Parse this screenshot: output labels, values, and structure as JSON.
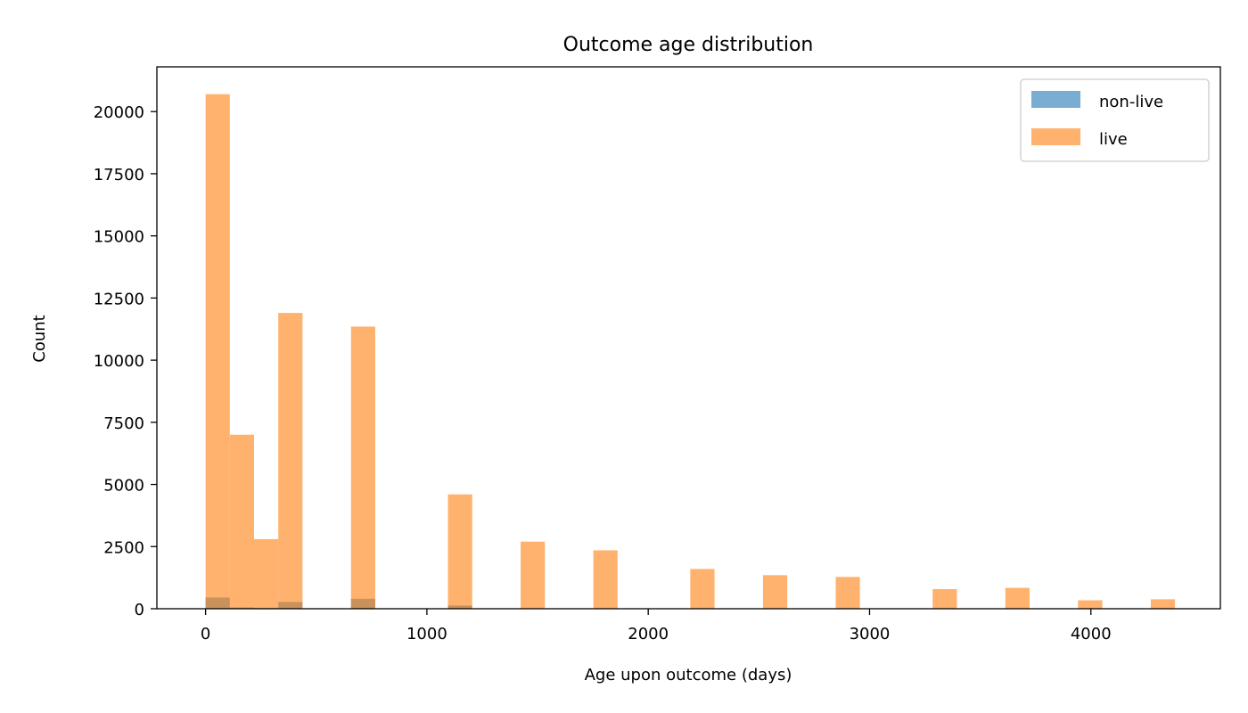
{
  "chart_data": {
    "type": "bar",
    "title": "Outcome age distribution",
    "xlabel": "Age upon outcome (days)",
    "ylabel": "Count",
    "xlim": [
      -220,
      4585
    ],
    "ylim": [
      0,
      21800
    ],
    "xticks": [
      0,
      1000,
      2000,
      3000,
      4000
    ],
    "yticks": [
      0,
      2500,
      5000,
      7500,
      10000,
      12500,
      15000,
      17500,
      20000
    ],
    "bin_width": 109.5,
    "bin_starts": [
      0,
      109.5,
      219,
      328.5,
      657,
      1095,
      1423.5,
      1752,
      2190,
      2518.5,
      2847,
      3285,
      3613.5,
      3942,
      4270.5
    ],
    "grid": false,
    "legend_position": "upper right",
    "series": [
      {
        "name": "non-live",
        "color": "#1f77b4",
        "alpha": 0.6,
        "values": [
          450,
          50,
          30,
          270,
          400,
          130,
          10,
          10,
          10,
          10,
          10,
          5,
          5,
          5,
          5
        ]
      },
      {
        "name": "live",
        "color": "#ff7f0e",
        "alpha": 0.6,
        "values": [
          20700,
          7000,
          2800,
          11900,
          11350,
          4600,
          2700,
          2350,
          1600,
          1350,
          1280,
          790,
          840,
          340,
          380
        ]
      }
    ]
  }
}
